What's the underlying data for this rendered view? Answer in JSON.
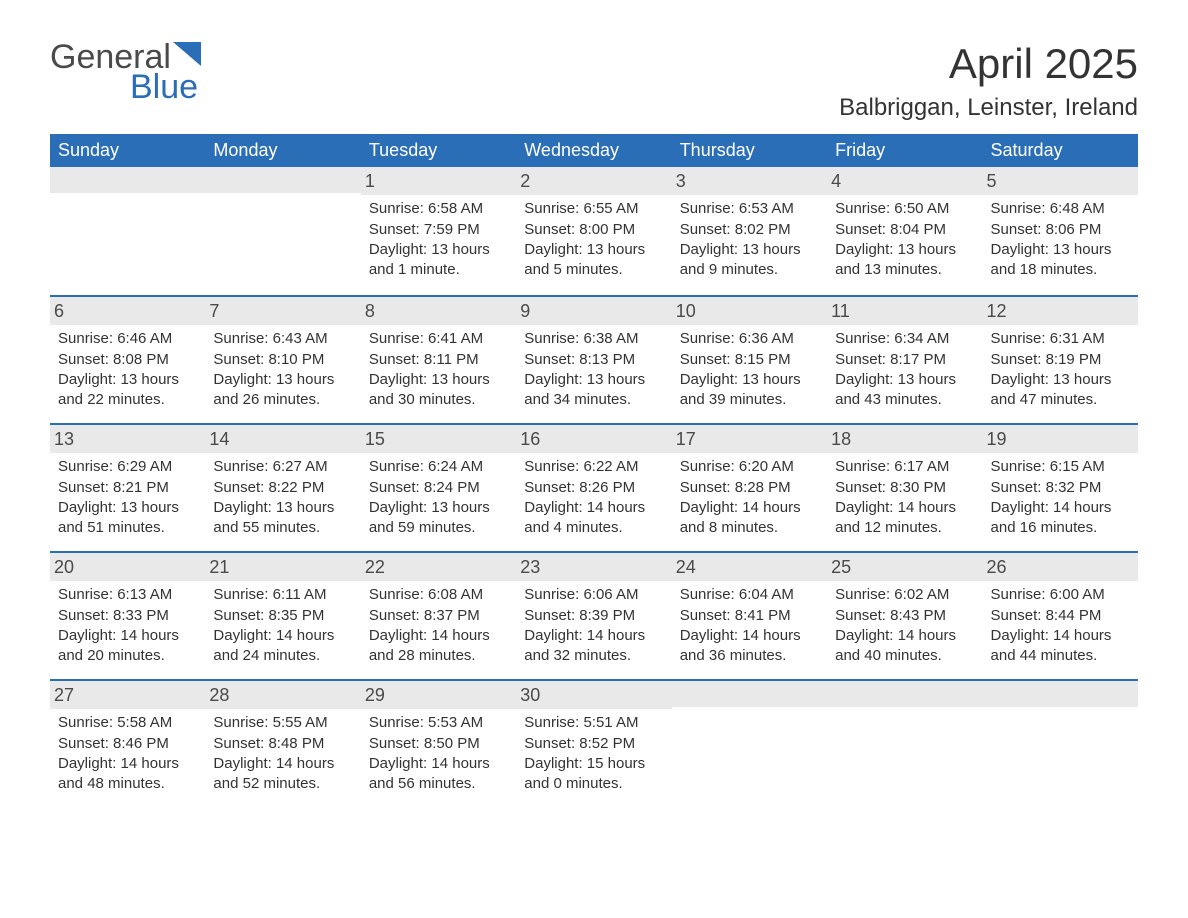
{
  "logo": {
    "text_top": "General",
    "text_bottom": "Blue",
    "accent_color": "#2a6eb8",
    "text_color": "#4a4a4a"
  },
  "title": "April 2025",
  "location": "Balbriggan, Leinster, Ireland",
  "colors": {
    "header_bg": "#2a6eb8",
    "header_text": "#ffffff",
    "daynum_bg": "#e9e9e9",
    "row_border": "#2a6eb8",
    "body_text": "#333333",
    "background": "#ffffff"
  },
  "typography": {
    "title_fontsize": 42,
    "location_fontsize": 24,
    "weekday_fontsize": 18,
    "body_fontsize": 15
  },
  "weekdays": [
    "Sunday",
    "Monday",
    "Tuesday",
    "Wednesday",
    "Thursday",
    "Friday",
    "Saturday"
  ],
  "weeks": [
    [
      null,
      null,
      {
        "n": "1",
        "sunrise": "Sunrise: 6:58 AM",
        "sunset": "Sunset: 7:59 PM",
        "daylight": "Daylight: 13 hours and 1 minute."
      },
      {
        "n": "2",
        "sunrise": "Sunrise: 6:55 AM",
        "sunset": "Sunset: 8:00 PM",
        "daylight": "Daylight: 13 hours and 5 minutes."
      },
      {
        "n": "3",
        "sunrise": "Sunrise: 6:53 AM",
        "sunset": "Sunset: 8:02 PM",
        "daylight": "Daylight: 13 hours and 9 minutes."
      },
      {
        "n": "4",
        "sunrise": "Sunrise: 6:50 AM",
        "sunset": "Sunset: 8:04 PM",
        "daylight": "Daylight: 13 hours and 13 minutes."
      },
      {
        "n": "5",
        "sunrise": "Sunrise: 6:48 AM",
        "sunset": "Sunset: 8:06 PM",
        "daylight": "Daylight: 13 hours and 18 minutes."
      }
    ],
    [
      {
        "n": "6",
        "sunrise": "Sunrise: 6:46 AM",
        "sunset": "Sunset: 8:08 PM",
        "daylight": "Daylight: 13 hours and 22 minutes."
      },
      {
        "n": "7",
        "sunrise": "Sunrise: 6:43 AM",
        "sunset": "Sunset: 8:10 PM",
        "daylight": "Daylight: 13 hours and 26 minutes."
      },
      {
        "n": "8",
        "sunrise": "Sunrise: 6:41 AM",
        "sunset": "Sunset: 8:11 PM",
        "daylight": "Daylight: 13 hours and 30 minutes."
      },
      {
        "n": "9",
        "sunrise": "Sunrise: 6:38 AM",
        "sunset": "Sunset: 8:13 PM",
        "daylight": "Daylight: 13 hours and 34 minutes."
      },
      {
        "n": "10",
        "sunrise": "Sunrise: 6:36 AM",
        "sunset": "Sunset: 8:15 PM",
        "daylight": "Daylight: 13 hours and 39 minutes."
      },
      {
        "n": "11",
        "sunrise": "Sunrise: 6:34 AM",
        "sunset": "Sunset: 8:17 PM",
        "daylight": "Daylight: 13 hours and 43 minutes."
      },
      {
        "n": "12",
        "sunrise": "Sunrise: 6:31 AM",
        "sunset": "Sunset: 8:19 PM",
        "daylight": "Daylight: 13 hours and 47 minutes."
      }
    ],
    [
      {
        "n": "13",
        "sunrise": "Sunrise: 6:29 AM",
        "sunset": "Sunset: 8:21 PM",
        "daylight": "Daylight: 13 hours and 51 minutes."
      },
      {
        "n": "14",
        "sunrise": "Sunrise: 6:27 AM",
        "sunset": "Sunset: 8:22 PM",
        "daylight": "Daylight: 13 hours and 55 minutes."
      },
      {
        "n": "15",
        "sunrise": "Sunrise: 6:24 AM",
        "sunset": "Sunset: 8:24 PM",
        "daylight": "Daylight: 13 hours and 59 minutes."
      },
      {
        "n": "16",
        "sunrise": "Sunrise: 6:22 AM",
        "sunset": "Sunset: 8:26 PM",
        "daylight": "Daylight: 14 hours and 4 minutes."
      },
      {
        "n": "17",
        "sunrise": "Sunrise: 6:20 AM",
        "sunset": "Sunset: 8:28 PM",
        "daylight": "Daylight: 14 hours and 8 minutes."
      },
      {
        "n": "18",
        "sunrise": "Sunrise: 6:17 AM",
        "sunset": "Sunset: 8:30 PM",
        "daylight": "Daylight: 14 hours and 12 minutes."
      },
      {
        "n": "19",
        "sunrise": "Sunrise: 6:15 AM",
        "sunset": "Sunset: 8:32 PM",
        "daylight": "Daylight: 14 hours and 16 minutes."
      }
    ],
    [
      {
        "n": "20",
        "sunrise": "Sunrise: 6:13 AM",
        "sunset": "Sunset: 8:33 PM",
        "daylight": "Daylight: 14 hours and 20 minutes."
      },
      {
        "n": "21",
        "sunrise": "Sunrise: 6:11 AM",
        "sunset": "Sunset: 8:35 PM",
        "daylight": "Daylight: 14 hours and 24 minutes."
      },
      {
        "n": "22",
        "sunrise": "Sunrise: 6:08 AM",
        "sunset": "Sunset: 8:37 PM",
        "daylight": "Daylight: 14 hours and 28 minutes."
      },
      {
        "n": "23",
        "sunrise": "Sunrise: 6:06 AM",
        "sunset": "Sunset: 8:39 PM",
        "daylight": "Daylight: 14 hours and 32 minutes."
      },
      {
        "n": "24",
        "sunrise": "Sunrise: 6:04 AM",
        "sunset": "Sunset: 8:41 PM",
        "daylight": "Daylight: 14 hours and 36 minutes."
      },
      {
        "n": "25",
        "sunrise": "Sunrise: 6:02 AM",
        "sunset": "Sunset: 8:43 PM",
        "daylight": "Daylight: 14 hours and 40 minutes."
      },
      {
        "n": "26",
        "sunrise": "Sunrise: 6:00 AM",
        "sunset": "Sunset: 8:44 PM",
        "daylight": "Daylight: 14 hours and 44 minutes."
      }
    ],
    [
      {
        "n": "27",
        "sunrise": "Sunrise: 5:58 AM",
        "sunset": "Sunset: 8:46 PM",
        "daylight": "Daylight: 14 hours and 48 minutes."
      },
      {
        "n": "28",
        "sunrise": "Sunrise: 5:55 AM",
        "sunset": "Sunset: 8:48 PM",
        "daylight": "Daylight: 14 hours and 52 minutes."
      },
      {
        "n": "29",
        "sunrise": "Sunrise: 5:53 AM",
        "sunset": "Sunset: 8:50 PM",
        "daylight": "Daylight: 14 hours and 56 minutes."
      },
      {
        "n": "30",
        "sunrise": "Sunrise: 5:51 AM",
        "sunset": "Sunset: 8:52 PM",
        "daylight": "Daylight: 15 hours and 0 minutes."
      },
      null,
      null,
      null
    ]
  ]
}
